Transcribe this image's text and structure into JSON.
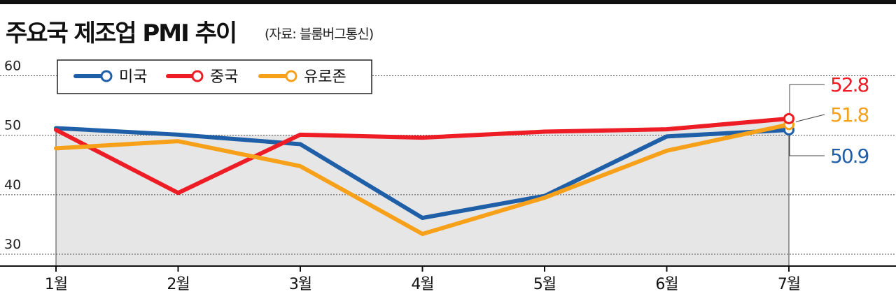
{
  "header": {
    "title": "주요국 제조업 PMI 추이",
    "source": "(자료: 블룸버그통신)"
  },
  "colors": {
    "us": "#1f5fa8",
    "china": "#ee1c24",
    "eurozone": "#f7a11a",
    "plot_bg": "#e6e6e6"
  },
  "chart_data": {
    "type": "line",
    "title": "주요국 제조업 PMI 추이",
    "xlabel": "",
    "ylabel": "",
    "categories": [
      "1월",
      "2월",
      "3월",
      "4월",
      "5월",
      "6월",
      "7월"
    ],
    "yticks": [
      30,
      40,
      50,
      60
    ],
    "ylim": [
      28,
      61
    ],
    "grid": true,
    "legend": "top-left",
    "series": [
      {
        "name": "미국",
        "color": "#1f5fa8",
        "values": [
          51.2,
          50.1,
          48.5,
          36.1,
          39.8,
          49.8,
          50.9
        ]
      },
      {
        "name": "중국",
        "color": "#ee1c24",
        "values": [
          50.9,
          40.3,
          50.1,
          49.6,
          50.6,
          51.0,
          52.8
        ]
      },
      {
        "name": "유로존",
        "color": "#f7a11a",
        "values": [
          47.8,
          49.0,
          44.8,
          33.4,
          39.5,
          47.4,
          51.8
        ]
      }
    ],
    "end_labels": [
      "52.8",
      "51.8",
      "50.9"
    ]
  }
}
